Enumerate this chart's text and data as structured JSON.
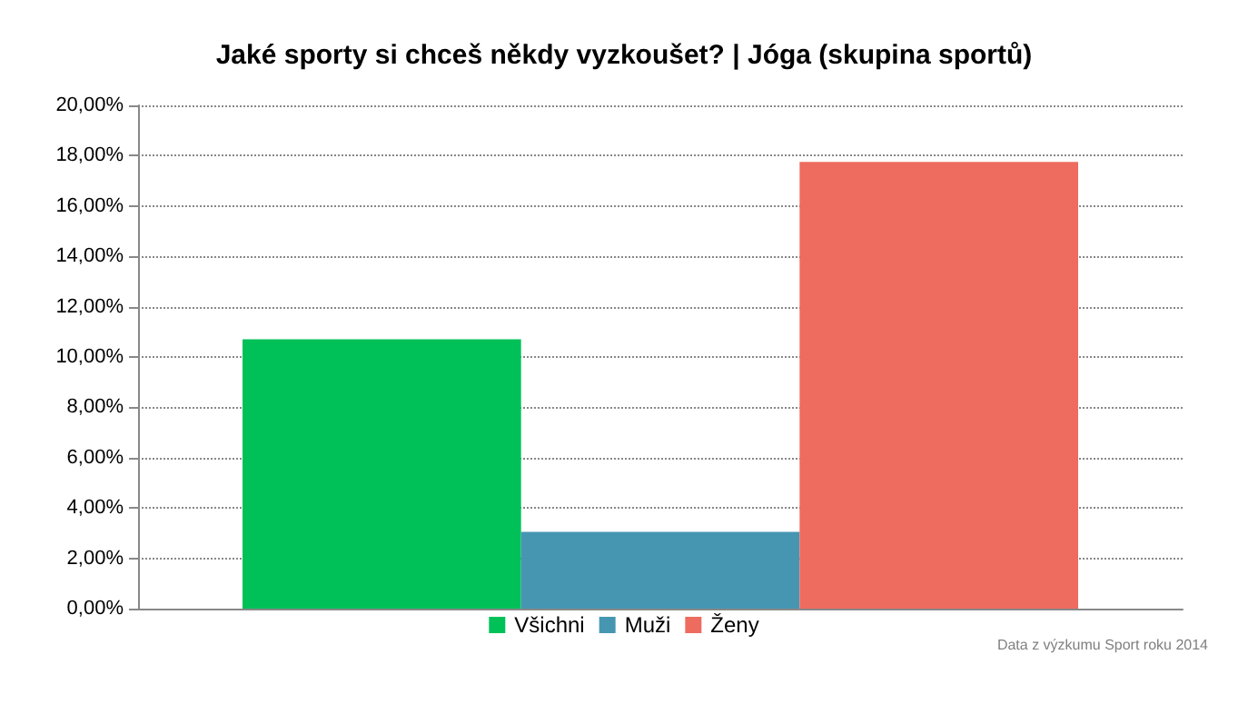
{
  "chart_data": {
    "type": "bar",
    "title": "Jaké sporty si chceš někdy vyzkoušet? | Jóga (skupina sportů)",
    "categories": [
      null
    ],
    "series": [
      {
        "name": "Všichni",
        "color": "#00c157",
        "values": [
          10.7
        ]
      },
      {
        "name": "Muži",
        "color": "#4696b2",
        "values": [
          3.05
        ]
      },
      {
        "name": "Ženy",
        "color": "#ee6b60",
        "values": [
          17.75
        ]
      }
    ],
    "ylim": [
      0,
      20
    ],
    "yticks": [
      {
        "value": 0,
        "label": "0,00%"
      },
      {
        "value": 2,
        "label": "2,00%"
      },
      {
        "value": 4,
        "label": "4,00%"
      },
      {
        "value": 6,
        "label": "6,00%"
      },
      {
        "value": 8,
        "label": "8,00%"
      },
      {
        "value": 10,
        "label": "10,00%"
      },
      {
        "value": 12,
        "label": "12,00%"
      },
      {
        "value": 14,
        "label": "14,00%"
      },
      {
        "value": 16,
        "label": "16,00%"
      },
      {
        "value": 18,
        "label": "18,00%"
      },
      {
        "value": 20,
        "label": "20,00%"
      }
    ],
    "grid": "y",
    "legend": "bottom",
    "annotations": [
      "Data z výzkumu Sport roku 2014"
    ]
  }
}
